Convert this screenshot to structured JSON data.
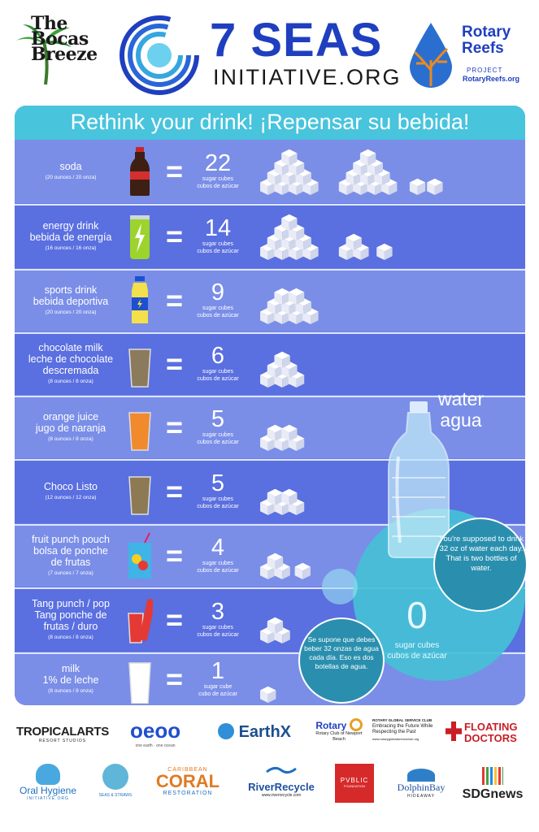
{
  "header": {
    "bocas_logo": "The Bocas Breeze",
    "bocas_lines": [
      "The",
      "Bocas",
      "Breeze"
    ],
    "seas_title": "7 SEAS",
    "seas_sub": "INITIATIVE.ORG",
    "rotary_title_1": "Rotary",
    "rotary_title_2": "Reefs",
    "rotary_project": "PROJECT",
    "rotary_url": "RotaryReefs.org"
  },
  "headline": "Rethink your drink! ¡Repensar su bebida!",
  "drinks": [
    {
      "name": "soda",
      "oz": "(20 ounces / 20 onza)",
      "count": "22",
      "unit_en": "sugar cubes",
      "unit_es": "cubos de azúcar",
      "icon": "soda-bottle-icon"
    },
    {
      "name": "energy drink\nbebida de energía",
      "oz": "(16 ounces / 16 onza)",
      "count": "14",
      "unit_en": "sugar cubes",
      "unit_es": "cubos de azúcar",
      "icon": "energy-can-icon"
    },
    {
      "name": "sports drink\nbebida deportiva",
      "oz": "(20 ounces / 20 onza)",
      "count": "9",
      "unit_en": "sugar cubes",
      "unit_es": "cubos de azúcar",
      "icon": "sports-bottle-icon"
    },
    {
      "name": "chocolate milk\nleche de chocolate\ndescremada",
      "oz": "(8 ounces / 8 onza)",
      "count": "6",
      "unit_en": "sugar cubes",
      "unit_es": "cubos de azúcar",
      "icon": "chocolate-glass-icon"
    },
    {
      "name": "orange juice\njugo de naranja",
      "oz": "(8 ounces / 8 onza)",
      "count": "5",
      "unit_en": "sugar cubes",
      "unit_es": "cubos de azúcar",
      "icon": "juice-glass-icon"
    },
    {
      "name": "Choco Listo",
      "oz": "(12 ounces / 12 onza)",
      "count": "5",
      "unit_en": "sugar cubes",
      "unit_es": "cubos de azúcar",
      "icon": "choco-glass-icon"
    },
    {
      "name": "fruit punch pouch\nbolsa de ponche\nde frutas",
      "oz": "(7 ounces / 7 onza)",
      "count": "4",
      "unit_en": "sugar cubes",
      "unit_es": "cubos de azúcar",
      "icon": "punch-pouch-icon"
    },
    {
      "name": "Tang punch / pop\nTang ponche de\nfrutas / duro",
      "oz": "(8 ounces / 8 onza)",
      "count": "3",
      "unit_en": "sugar cubes",
      "unit_es": "cubos de azúcar",
      "icon": "tang-glass-icon"
    },
    {
      "name": "milk\n1% de leche",
      "oz": "(8 ounces / 8 onza)",
      "count": "1",
      "unit_en": "sugar cube",
      "unit_es": "cubo de azúcar",
      "icon": "milk-glass-icon"
    }
  ],
  "water": {
    "title_en": "water",
    "title_es": "agua",
    "count": "0",
    "unit_en": "sugar cubes",
    "unit_es": "cubos de azúcar",
    "note_en": "You're supposed to drink 32 oz of water each day. That is two bottles of water.",
    "note_es": "Se supone que debes beber 32 onzas de agua cada día. Eso es dos botellas de agua."
  },
  "sponsors": {
    "tropical": "TROPICALARTS",
    "tropical_sub": "RESORT STUDIOS",
    "oeoo": "oeoo",
    "oeoo_sub": "one earth · one ocean",
    "earthx": "EarthX",
    "rotary_newport": "Rotary",
    "rotary_newport_sub": "Rotary Club of Newport Beach",
    "rgsc_title": "ROTARY GLOBAL SERVICE CLUB",
    "rgsc_sub": "Embracing the Future While Respecting the Past",
    "rgsc_url": "www.rotaryglobalserviceclub.org",
    "floating": "FLOATING DOCTORS",
    "oral": "Oral Hygiene",
    "oral_sub": "INITIATIVE.ORG",
    "seas_straws": "SEAS & STRAWS",
    "coral_top": "CARIBBEAN",
    "coral": "CORAL",
    "coral_sub": "RESTORATION",
    "river": "RiverRecycle",
    "river_url": "www.riverrecycle.com",
    "public": "PVBLIC",
    "public_sub": "FOUNDATION",
    "dolphin": "DolphinBay",
    "dolphin_sub": "HIDEAWAY",
    "sdg": "SDGnews"
  }
}
